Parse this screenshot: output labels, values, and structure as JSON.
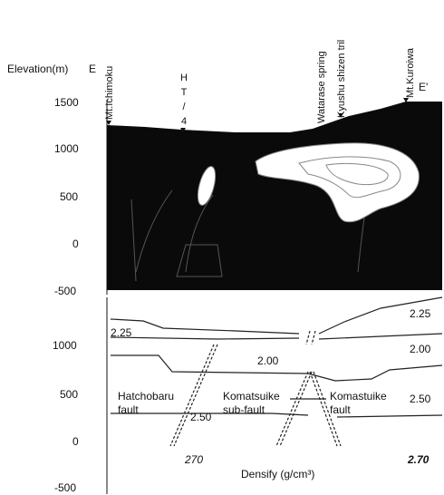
{
  "top": {
    "axis_label": "Elevation(m)",
    "section_start": "E",
    "section_end": "E'",
    "ticks": [
      "1500",
      "1000",
      "500",
      "0",
      "-500"
    ],
    "locations": [
      "Mt.Ichimoku",
      "HT/4",
      "Watarase spring",
      "Kyushu shizen tril",
      "Mt.Kuroiwa"
    ]
  },
  "bottom": {
    "ticks": [
      "1000",
      "500",
      "0",
      "-500"
    ],
    "densities": [
      "2.25",
      "2.25",
      "2.00",
      "2.00",
      "2.50",
      "2.50",
      "270",
      "2.70"
    ],
    "faults": [
      [
        "Hatchobaru",
        "fault"
      ],
      [
        "Komatsuike",
        "sub-fault"
      ],
      [
        "Komastuike",
        "fault"
      ]
    ],
    "x_label": "Densify (g/cm³)"
  }
}
